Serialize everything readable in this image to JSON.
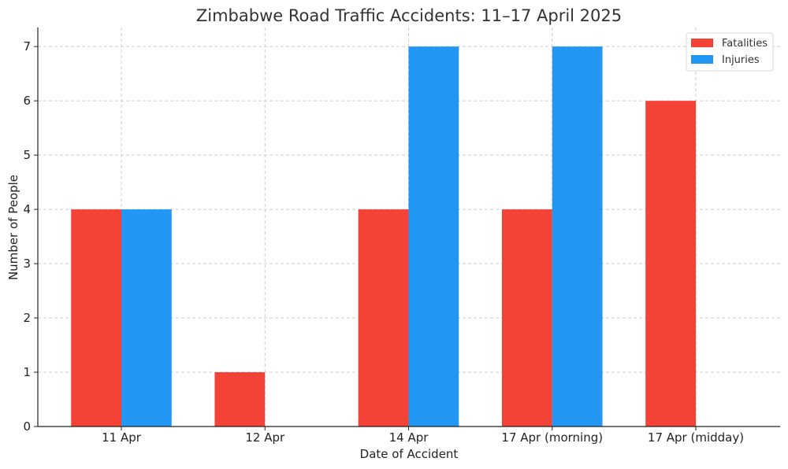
{
  "chart_data": {
    "type": "bar",
    "title": "Zimbabwe Road Traffic Accidents: 11–17 April 2025",
    "xlabel": "Date of Accident",
    "ylabel": "Number of People",
    "categories": [
      "11 Apr",
      "12 Apr",
      "14 Apr",
      "17 Apr (morning)",
      "17 Apr (midday)"
    ],
    "series": [
      {
        "name": "Fatalities",
        "values": [
          4,
          1,
          4,
          4,
          6
        ],
        "color": "#f44336"
      },
      {
        "name": "Injuries",
        "values": [
          4,
          0,
          7,
          7,
          0
        ],
        "color": "#2196f3"
      }
    ],
    "ylim": [
      0,
      7.35
    ],
    "yticks": [
      0,
      1,
      2,
      3,
      4,
      5,
      6,
      7
    ],
    "grid": true,
    "legend_position": "top-right"
  }
}
